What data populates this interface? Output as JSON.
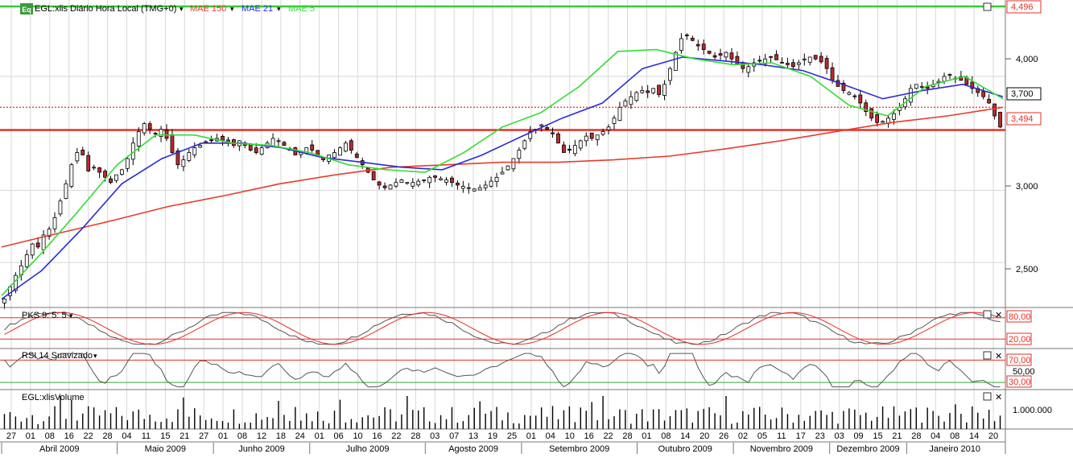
{
  "main": {
    "symbol_icon": "Eq",
    "title": "EGL:xlis Diário Hora Local (TMG+0)",
    "indicators": [
      {
        "label": "MAE 150",
        "color": "#e83b2c"
      },
      {
        "label": "MAE 21",
        "color": "#2b2bd6"
      },
      {
        "label": "MAE 5",
        "color": "#33dd33"
      }
    ],
    "y_ticks": [
      "4,000",
      "3,000",
      "2,500"
    ],
    "markers": [
      {
        "label": "4,496",
        "value": 4.496,
        "line_color": "#33cc33",
        "label_color": "#e53027",
        "style": "solid"
      },
      {
        "label": "3,700",
        "value": 3.7,
        "line_color": "#e53027",
        "label_color": "#000000",
        "style": "dotted"
      },
      {
        "label": "3,494",
        "value": 3.494,
        "line_color": "#e53027",
        "label_color": "#e53027",
        "style": "solid"
      }
    ]
  },
  "pks": {
    "title": "PKS 9: 5: 5",
    "levels": [
      "80,00",
      "20,00"
    ]
  },
  "rsi": {
    "title": "RSI 14 Suavizado",
    "levels": [
      "70,00",
      "50,00",
      "30,00"
    ]
  },
  "volume": {
    "title": "EGL:xlisVolume",
    "tick": "1.000.000"
  },
  "x_axis": {
    "days": [
      "27",
      "01",
      "08",
      "16",
      "22",
      "28",
      "04",
      "11",
      "15",
      "21",
      "27",
      "01",
      "08",
      "12",
      "18",
      "24",
      "01",
      "06",
      "10",
      "16",
      "22",
      "28",
      "03",
      "07",
      "13",
      "19",
      "25",
      "01",
      "04",
      "10",
      "16",
      "22",
      "28",
      "01",
      "08",
      "14",
      "20",
      "26",
      "02",
      "05",
      "11",
      "17",
      "23",
      "03",
      "09",
      "15",
      "21",
      "28",
      "04",
      "08",
      "14",
      "20"
    ],
    "months": [
      "Abril 2009",
      "Maio 2009",
      "Junho 2009",
      "Julho 2009",
      "Agosto 2009",
      "Setembro 2009",
      "Outubro 2009",
      "Novembro 2009",
      "Dezembro 2009",
      "Janeiro 2010"
    ]
  },
  "chart_data": {
    "type": "candlestick",
    "scale": "log",
    "ylim": [
      2.25,
      4.62
    ],
    "series_names": [
      "EGL:xlis",
      "MAE 150",
      "MAE 21",
      "MAE 5"
    ],
    "closes": [
      2.28,
      2.35,
      2.42,
      2.48,
      2.55,
      2.62,
      2.6,
      2.68,
      2.72,
      2.8,
      2.92,
      3.05,
      3.2,
      3.3,
      3.28,
      3.15,
      3.18,
      3.14,
      3.1,
      3.06,
      3.12,
      3.16,
      3.25,
      3.38,
      3.48,
      3.55,
      3.5,
      3.46,
      3.5,
      3.42,
      3.3,
      3.2,
      3.24,
      3.3,
      3.34,
      3.36,
      3.38,
      3.4,
      3.42,
      3.4,
      3.38,
      3.36,
      3.4,
      3.36,
      3.32,
      3.3,
      3.34,
      3.38,
      3.42,
      3.4,
      3.36,
      3.32,
      3.28,
      3.3,
      3.34,
      3.32,
      3.28,
      3.24,
      3.28,
      3.3,
      3.34,
      3.38,
      3.32,
      3.26,
      3.2,
      3.14,
      3.08,
      3.04,
      3.02,
      3.04,
      3.06,
      3.08,
      3.06,
      3.06,
      3.07,
      3.08,
      3.1,
      3.1,
      3.09,
      3.08,
      3.06,
      3.04,
      3.03,
      3.02,
      3.01,
      3.02,
      3.04,
      3.07,
      3.1,
      3.14,
      3.19,
      3.25,
      3.32,
      3.4,
      3.48,
      3.5,
      3.54,
      3.5,
      3.46,
      3.38,
      3.3,
      3.32,
      3.36,
      3.4,
      3.44,
      3.42,
      3.45,
      3.48,
      3.52,
      3.6,
      3.7,
      3.76,
      3.8,
      3.84,
      3.86,
      3.84,
      3.88,
      3.82,
      3.92,
      4.08,
      4.25,
      4.4,
      4.44,
      4.38,
      4.32,
      4.28,
      4.24,
      4.2,
      4.22,
      4.25,
      4.18,
      4.12,
      4.08,
      4.1,
      4.14,
      4.16,
      4.18,
      4.2,
      4.17,
      4.14,
      4.12,
      4.1,
      4.14,
      4.18,
      4.2,
      4.18,
      4.15,
      4.08,
      3.96,
      3.9,
      3.86,
      3.84,
      3.8,
      3.74,
      3.66,
      3.6,
      3.56,
      3.57,
      3.6,
      3.64,
      3.7,
      3.78,
      3.88,
      3.92,
      3.9,
      3.88,
      3.92,
      3.95,
      4.0,
      4.02,
      3.98,
      3.96,
      3.92,
      3.88,
      3.84,
      3.8,
      3.74,
      3.62,
      3.52
    ],
    "mae150": [
      2.6,
      2.69,
      2.78,
      2.88,
      2.96,
      3.05,
      3.12,
      3.18,
      3.2,
      3.22,
      3.22,
      3.24,
      3.27,
      3.33,
      3.4,
      3.48,
      3.56,
      3.62,
      3.7
    ],
    "mae21": [
      2.28,
      2.45,
      2.72,
      3.05,
      3.25,
      3.38,
      3.38,
      3.34,
      3.26,
      3.22,
      3.18,
      3.16,
      3.28,
      3.44,
      3.6,
      3.74,
      4.08,
      4.2,
      4.16,
      4.12,
      4.06,
      3.92,
      3.78,
      3.86,
      3.92,
      3.8
    ],
    "mae5": [
      2.3,
      2.55,
      2.85,
      3.2,
      3.45,
      3.45,
      3.38,
      3.36,
      3.3,
      3.2,
      3.16,
      3.14,
      3.3,
      3.52,
      3.65,
      3.9,
      4.26,
      4.28,
      4.18,
      4.12,
      4.14,
      4.0,
      3.72,
      3.62,
      3.9,
      4.0,
      3.78
    ],
    "volume_max": 1300000
  }
}
